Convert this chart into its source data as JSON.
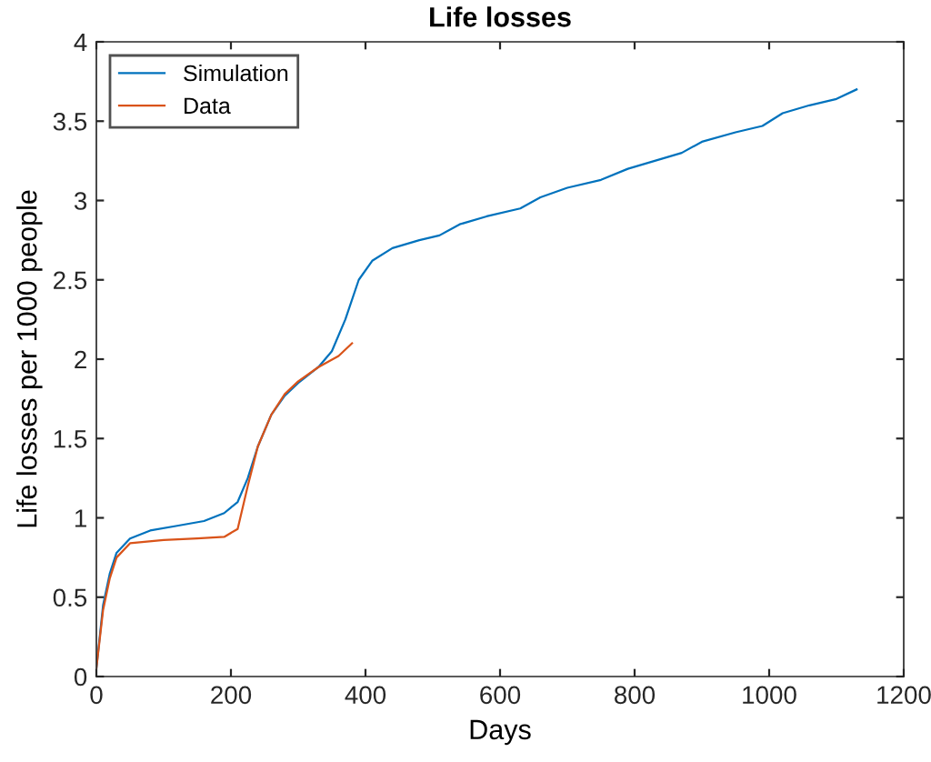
{
  "chart_data": {
    "type": "line",
    "title": "Life losses",
    "xlabel": "Days",
    "ylabel": "Life losses per 1000 people",
    "xlim": [
      0,
      1200
    ],
    "xticks": [
      0,
      200,
      400,
      600,
      800,
      1000,
      1200
    ],
    "ylim": [
      0,
      4
    ],
    "yticks": [
      0,
      0.5,
      1,
      1.5,
      2,
      2.5,
      3,
      3.5,
      4
    ],
    "legend": "top left",
    "grid": false,
    "series": [
      {
        "name": "Simulation",
        "color": "#0072bd",
        "x": [
          0,
          10,
          20,
          30,
          50,
          80,
          120,
          160,
          190,
          210,
          225,
          240,
          260,
          280,
          300,
          330,
          350,
          370,
          390,
          410,
          440,
          480,
          510,
          540,
          580,
          630,
          660,
          700,
          750,
          790,
          830,
          870,
          900,
          950,
          990,
          1020,
          1060,
          1100,
          1130
        ],
        "values": [
          0.05,
          0.45,
          0.65,
          0.78,
          0.87,
          0.92,
          0.95,
          0.98,
          1.03,
          1.1,
          1.25,
          1.45,
          1.65,
          1.77,
          1.85,
          1.95,
          2.05,
          2.25,
          2.5,
          2.62,
          2.7,
          2.75,
          2.78,
          2.85,
          2.9,
          2.95,
          3.02,
          3.08,
          3.13,
          3.2,
          3.25,
          3.3,
          3.37,
          3.43,
          3.47,
          3.55,
          3.6,
          3.64,
          3.7
        ]
      },
      {
        "name": "Data",
        "color": "#d95319",
        "x": [
          0,
          10,
          20,
          30,
          50,
          100,
          150,
          190,
          210,
          225,
          240,
          260,
          280,
          300,
          330,
          360,
          380
        ],
        "values": [
          0.05,
          0.42,
          0.62,
          0.75,
          0.84,
          0.86,
          0.87,
          0.88,
          0.93,
          1.2,
          1.45,
          1.65,
          1.78,
          1.86,
          1.95,
          2.02,
          2.1
        ]
      }
    ]
  }
}
